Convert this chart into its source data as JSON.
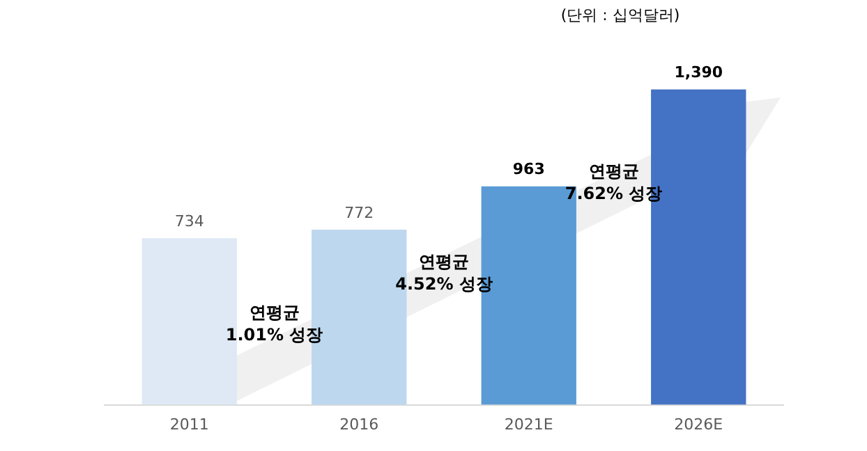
{
  "chart_data": {
    "type": "bar",
    "categories": [
      "2011",
      "2016",
      "2021E",
      "2026E"
    ],
    "values": [
      734,
      772,
      963,
      1390
    ],
    "colors": [
      "#dee9f5",
      "#bdd7ee",
      "#5b9bd5",
      "#4472c4"
    ],
    "value_labels": [
      "734",
      "772",
      "963",
      "1,390"
    ],
    "annotations": [
      "(단위 : 십억달러)",
      "연평균\n1.01% 성장",
      "연평균\n4.52% 성장",
      "연평균\n7.62% 성장"
    ],
    "grid": false,
    "legend": false
  }
}
